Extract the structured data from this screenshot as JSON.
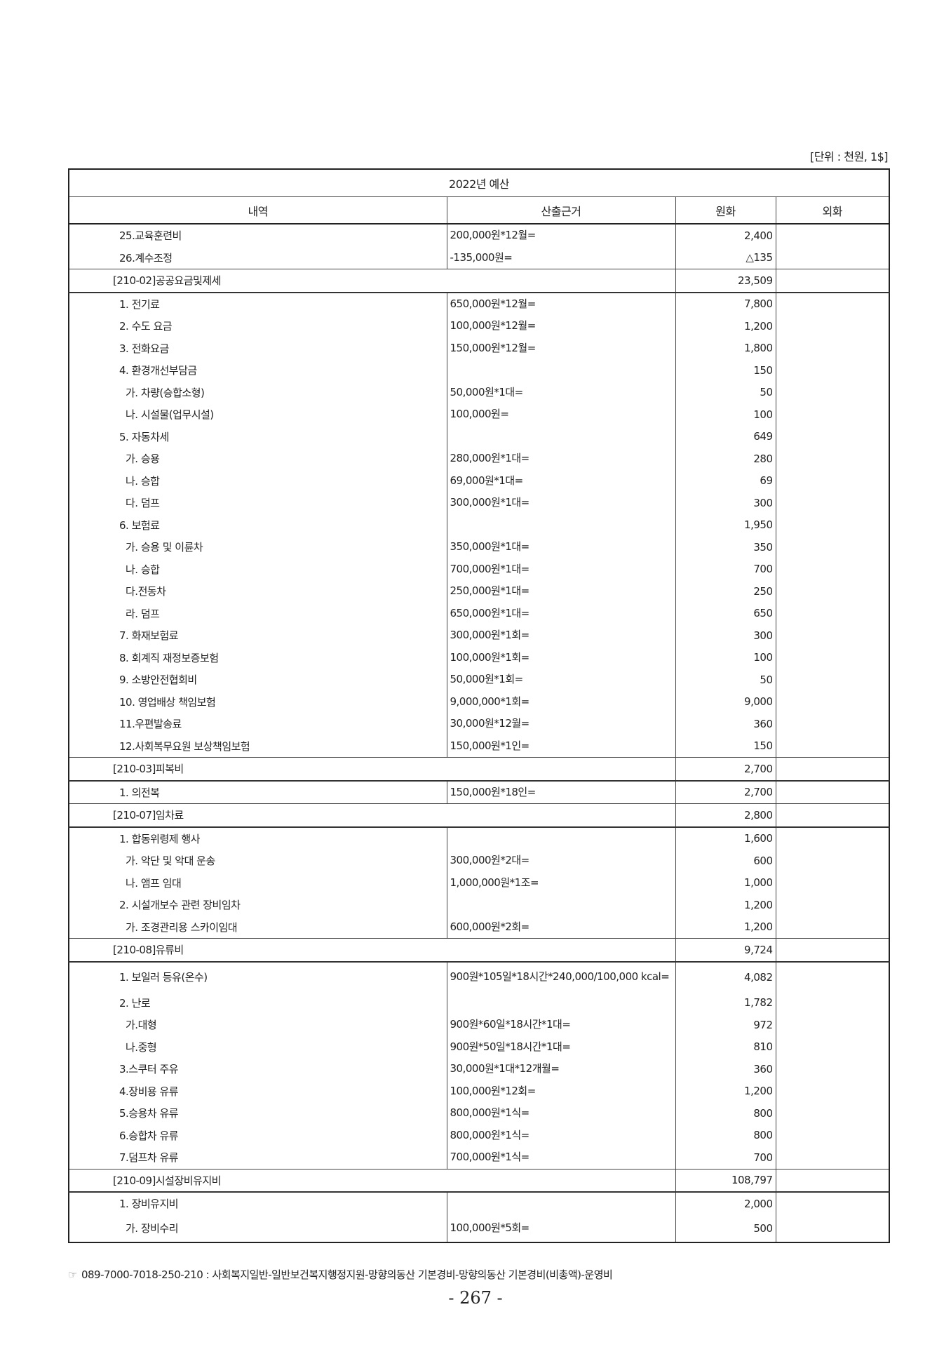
{
  "unit_label": "[단위 : 천원, 1$]",
  "table_title": "2022년 예산",
  "headers": [
    "내역",
    "산출근거",
    "원화",
    "외화"
  ],
  "rows": [
    {
      "type": "item",
      "level": 1,
      "label": "25.교육훈련비",
      "basis": "200,000원*12월=",
      "krw": "2,400"
    },
    {
      "type": "item",
      "level": 1,
      "label": "26.계수조정",
      "basis": "-135,000원=",
      "krw": "△135"
    },
    {
      "type": "section",
      "label": "[210-02]공공요금및제세",
      "krw": "23,509"
    },
    {
      "type": "item",
      "level": 1,
      "label": "1. 전기료",
      "basis": "650,000원*12월=",
      "krw": "7,800"
    },
    {
      "type": "item",
      "level": 1,
      "label": "2. 수도 요금",
      "basis": "100,000원*12월=",
      "krw": "1,200"
    },
    {
      "type": "item",
      "level": 1,
      "label": "3. 전화요금",
      "basis": "150,000원*12월=",
      "krw": "1,800"
    },
    {
      "type": "item",
      "level": 1,
      "label": "4. 환경개선부담금",
      "basis": "",
      "krw": "150"
    },
    {
      "type": "item",
      "level": 2,
      "label": "가. 차량(승합소형)",
      "basis": "50,000원*1대=",
      "krw": "50"
    },
    {
      "type": "item",
      "level": 2,
      "label": "나. 시설물(업무시설)",
      "basis": "100,000원=",
      "krw": "100"
    },
    {
      "type": "item",
      "level": 1,
      "label": "5. 자동차세",
      "basis": "",
      "krw": "649"
    },
    {
      "type": "item",
      "level": 2,
      "label": "가. 승용",
      "basis": "280,000원*1대=",
      "krw": "280"
    },
    {
      "type": "item",
      "level": 2,
      "label": "나. 승합",
      "basis": "69,000원*1대=",
      "krw": "69"
    },
    {
      "type": "item",
      "level": 2,
      "label": "다. 덤프",
      "basis": "300,000원*1대=",
      "krw": "300"
    },
    {
      "type": "item",
      "level": 1,
      "label": "6. 보험료",
      "basis": "",
      "krw": "1,950"
    },
    {
      "type": "item",
      "level": 2,
      "label": "가. 승용 및 이륜차",
      "basis": "350,000원*1대=",
      "krw": "350"
    },
    {
      "type": "item",
      "level": 2,
      "label": "나. 승합",
      "basis": "700,000원*1대=",
      "krw": "700"
    },
    {
      "type": "item",
      "level": 2,
      "label": "다.전동차",
      "basis": "250,000원*1대=",
      "krw": "250"
    },
    {
      "type": "item",
      "level": 2,
      "label": "라. 덤프",
      "basis": "650,000원*1대=",
      "krw": "650"
    },
    {
      "type": "item",
      "level": 1,
      "label": "7. 화재보험료",
      "basis": "300,000원*1회=",
      "krw": "300"
    },
    {
      "type": "item",
      "level": 1,
      "label": "8. 회계직 재정보증보험",
      "basis": "100,000원*1회=",
      "krw": "100"
    },
    {
      "type": "item",
      "level": 1,
      "label": "9. 소방안전협회비",
      "basis": "50,000원*1회=",
      "krw": "50"
    },
    {
      "type": "item",
      "level": 1,
      "label": "10. 영업배상 책임보험",
      "basis": "9,000,000*1회=",
      "krw": "9,000"
    },
    {
      "type": "item",
      "level": 1,
      "label": "11.우편발송료",
      "basis": "30,000원*12월=",
      "krw": "360"
    },
    {
      "type": "item",
      "level": 1,
      "label": "12.사회복무요원 보상책임보험",
      "basis": "150,000원*1인=",
      "krw": "150"
    },
    {
      "type": "section",
      "label": "[210-03]피복비",
      "krw": "2,700"
    },
    {
      "type": "item",
      "level": 1,
      "label": "1. 의전복",
      "basis": "150,000원*18인=",
      "krw": "2,700"
    },
    {
      "type": "section",
      "label": "[210-07]임차료",
      "krw": "2,800"
    },
    {
      "type": "item",
      "level": 1,
      "label": "1. 합동위령제 행사",
      "basis": "",
      "krw": "1,600"
    },
    {
      "type": "item",
      "level": 2,
      "label": "가. 악단 및 악대 운송",
      "basis": "300,000원*2대=",
      "krw": "600"
    },
    {
      "type": "item",
      "level": 2,
      "label": "나. 앰프 임대",
      "basis": "1,000,000원*1조=",
      "krw": "1,000"
    },
    {
      "type": "item",
      "level": 1,
      "label": "2. 시설개보수 관련 장비임차",
      "basis": "",
      "krw": "1,200"
    },
    {
      "type": "item",
      "level": 2,
      "label": "가. 조경관리용 스카이임대",
      "basis": "600,000원*2회=",
      "krw": "1,200"
    },
    {
      "type": "section",
      "label": "[210-08]유류비",
      "krw": "9,724"
    },
    {
      "type": "item",
      "level": 1,
      "label": "1. 보일러 등유(온수)",
      "basis": "900원*105일*18시간*240,000/100,000 kcal=",
      "krw": "4,082",
      "tall": true
    },
    {
      "type": "item",
      "level": 1,
      "label": "2. 난로",
      "basis": "",
      "krw": "1,782"
    },
    {
      "type": "item",
      "level": 2,
      "label": "가.대형",
      "basis": "900원*60일*18시간*1대=",
      "krw": "972"
    },
    {
      "type": "item",
      "level": 2,
      "label": "나.중형",
      "basis": "900원*50일*18시간*1대=",
      "krw": "810"
    },
    {
      "type": "item",
      "level": 1,
      "label": "3.스쿠터 주유",
      "basis": "30,000원*1대*12개월=",
      "krw": "360"
    },
    {
      "type": "item",
      "level": 1,
      "label": "4.장비용 유류",
      "basis": "100,000원*12회=",
      "krw": "1,200"
    },
    {
      "type": "item",
      "level": 1,
      "label": "5.승용차 유류",
      "basis": "800,000원*1식=",
      "krw": "800"
    },
    {
      "type": "item",
      "level": 1,
      "label": "6.승합차 유류",
      "basis": "800,000원*1식=",
      "krw": "800"
    },
    {
      "type": "item",
      "level": 1,
      "label": "7.덤프차 유류",
      "basis": "700,000원*1식=",
      "krw": "700"
    },
    {
      "type": "section",
      "label": "[210-09]시설장비유지비",
      "krw": "108,797"
    },
    {
      "type": "item",
      "level": 1,
      "label": "1. 장비유지비",
      "basis": "",
      "krw": "2,000"
    },
    {
      "type": "item",
      "level": 2,
      "label": "가. 장비수리",
      "basis": "100,000원*5회=",
      "krw": "500",
      "last": true
    }
  ],
  "footer": {
    "icon": "pointing-hand-icon",
    "text": "089-7000-7018-250-210 : 사회복지일반-일반보건복지행정지원-망향의동산 기본경비-망향의동산 기본경비(비총액)-운영비"
  },
  "page_number": "- 267 -"
}
